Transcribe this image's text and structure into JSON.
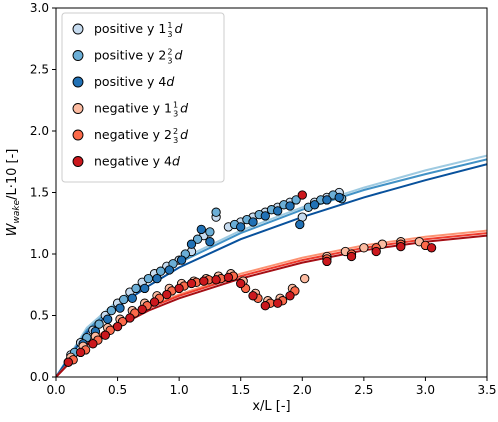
{
  "chart_data": {
    "type": "scatter",
    "title": "",
    "xlabel": "x/L [-]",
    "ylabel": "W_wake/L·10 [-]",
    "xlim": [
      0.0,
      3.5
    ],
    "ylim": [
      0.0,
      3.0
    ],
    "xticks": [
      "0.0",
      "0.5",
      "1.0",
      "1.5",
      "2.0",
      "2.5",
      "3.0",
      "3.5"
    ],
    "yticks": [
      "0.0",
      "0.5",
      "1.0",
      "1.5",
      "2.0",
      "2.5",
      "3.0"
    ],
    "xtick_values": [
      0.0,
      0.5,
      1.0,
      1.5,
      2.0,
      2.5,
      3.0,
      3.5
    ],
    "ytick_values": [
      0.0,
      0.5,
      1.0,
      1.5,
      2.0,
      2.5,
      3.0
    ],
    "grid": false,
    "legend_position": "top-left",
    "series": [
      {
        "name": "positive y 1⅓d",
        "label_parts": [
          "positive y 1",
          "1",
          "3",
          "d"
        ],
        "color": "#c6dbef",
        "fit_color": "#9ecae1",
        "points": [
          [
            0.12,
            0.18
          ],
          [
            0.2,
            0.28
          ],
          [
            0.3,
            0.38
          ],
          [
            0.4,
            0.5
          ],
          [
            0.5,
            0.6
          ],
          [
            0.6,
            0.69
          ],
          [
            0.7,
            0.77
          ],
          [
            0.8,
            0.84
          ],
          [
            0.9,
            0.9
          ],
          [
            1.0,
            0.95
          ],
          [
            1.1,
            1.02
          ],
          [
            1.2,
            1.15
          ],
          [
            1.3,
            1.3
          ],
          [
            1.4,
            1.22
          ],
          [
            1.5,
            1.26
          ],
          [
            1.6,
            1.3
          ],
          [
            1.7,
            1.34
          ],
          [
            1.8,
            1.38
          ],
          [
            1.9,
            1.42
          ],
          [
            2.0,
            1.3
          ],
          [
            2.1,
            1.42
          ],
          [
            2.2,
            1.46
          ],
          [
            2.3,
            1.5
          ]
        ],
        "fit": [
          [
            0.0,
            0.0
          ],
          [
            0.25,
            0.4
          ],
          [
            0.5,
            0.62
          ],
          [
            0.75,
            0.8
          ],
          [
            1.0,
            0.95
          ],
          [
            1.5,
            1.19
          ],
          [
            2.0,
            1.38
          ],
          [
            2.5,
            1.54
          ],
          [
            3.0,
            1.68
          ],
          [
            3.5,
            1.8
          ]
        ]
      },
      {
        "name": "positive y 2⅔d",
        "label_parts": [
          "positive y 2",
          "2",
          "3",
          "d"
        ],
        "color": "#6baed6",
        "fit_color": "#4292c6",
        "points": [
          [
            0.15,
            0.2
          ],
          [
            0.25,
            0.32
          ],
          [
            0.35,
            0.43
          ],
          [
            0.45,
            0.54
          ],
          [
            0.55,
            0.63
          ],
          [
            0.65,
            0.72
          ],
          [
            0.75,
            0.8
          ],
          [
            0.85,
            0.86
          ],
          [
            0.95,
            0.92
          ],
          [
            1.05,
            1.0
          ],
          [
            1.15,
            1.12
          ],
          [
            1.25,
            1.18
          ],
          [
            1.3,
            1.34
          ],
          [
            1.45,
            1.24
          ],
          [
            1.55,
            1.28
          ],
          [
            1.65,
            1.32
          ],
          [
            1.75,
            1.36
          ],
          [
            1.85,
            1.4
          ],
          [
            1.95,
            1.44
          ],
          [
            2.05,
            1.38
          ],
          [
            2.15,
            1.44
          ],
          [
            2.25,
            1.48
          ],
          [
            2.32,
            1.45
          ]
        ],
        "fit": [
          [
            0.0,
            0.0
          ],
          [
            0.25,
            0.38
          ],
          [
            0.5,
            0.6
          ],
          [
            0.75,
            0.78
          ],
          [
            1.0,
            0.93
          ],
          [
            1.5,
            1.17
          ],
          [
            2.0,
            1.36
          ],
          [
            2.5,
            1.52
          ],
          [
            3.0,
            1.65
          ],
          [
            3.5,
            1.77
          ]
        ]
      },
      {
        "name": "positive y 4d",
        "label_parts": [
          "positive y 4",
          "",
          "",
          "d"
        ],
        "color": "#2171b5",
        "fit_color": "#08519c",
        "points": [
          [
            0.1,
            0.12
          ],
          [
            0.22,
            0.27
          ],
          [
            0.32,
            0.37
          ],
          [
            0.42,
            0.47
          ],
          [
            0.52,
            0.56
          ],
          [
            0.62,
            0.64
          ],
          [
            0.72,
            0.72
          ],
          [
            0.82,
            0.8
          ],
          [
            0.92,
            0.87
          ],
          [
            1.02,
            0.95
          ],
          [
            1.1,
            1.08
          ],
          [
            1.18,
            1.2
          ],
          [
            1.25,
            1.1
          ],
          [
            1.5,
            1.22
          ],
          [
            1.6,
            1.26
          ],
          [
            1.7,
            1.31
          ],
          [
            1.8,
            1.35
          ],
          [
            1.9,
            1.39
          ],
          [
            1.98,
            1.24
          ],
          [
            2.1,
            1.4
          ],
          [
            2.2,
            1.44
          ],
          [
            2.3,
            1.46
          ]
        ],
        "fit": [
          [
            0.0,
            0.0
          ],
          [
            0.25,
            0.36
          ],
          [
            0.5,
            0.57
          ],
          [
            0.75,
            0.74
          ],
          [
            1.0,
            0.89
          ],
          [
            1.5,
            1.12
          ],
          [
            2.0,
            1.3
          ],
          [
            2.5,
            1.46
          ],
          [
            3.0,
            1.6
          ],
          [
            3.5,
            1.73
          ]
        ]
      },
      {
        "name": "negative y 1⅓d",
        "label_parts": [
          "negative y 1",
          "1",
          "3",
          "d"
        ],
        "color": "#fcbba1",
        "fit_color": "#fc9272",
        "points": [
          [
            0.12,
            0.16
          ],
          [
            0.22,
            0.25
          ],
          [
            0.32,
            0.33
          ],
          [
            0.42,
            0.4
          ],
          [
            0.52,
            0.47
          ],
          [
            0.62,
            0.54
          ],
          [
            0.72,
            0.6
          ],
          [
            0.82,
            0.66
          ],
          [
            0.92,
            0.72
          ],
          [
            1.02,
            0.76
          ],
          [
            1.12,
            0.78
          ],
          [
            1.22,
            0.8
          ],
          [
            1.32,
            0.82
          ],
          [
            1.42,
            0.84
          ],
          [
            1.52,
            0.78
          ],
          [
            1.62,
            0.68
          ],
          [
            1.72,
            0.62
          ],
          [
            1.82,
            0.64
          ],
          [
            1.92,
            0.72
          ],
          [
            2.02,
            0.8
          ],
          [
            2.2,
            0.98
          ],
          [
            2.35,
            1.02
          ],
          [
            2.5,
            1.05
          ],
          [
            2.65,
            1.08
          ],
          [
            2.8,
            1.1
          ],
          [
            2.95,
            1.1
          ]
        ],
        "fit": [
          [
            0.0,
            0.0
          ],
          [
            0.25,
            0.28
          ],
          [
            0.5,
            0.44
          ],
          [
            0.75,
            0.57
          ],
          [
            1.0,
            0.67
          ],
          [
            1.5,
            0.84
          ],
          [
            2.0,
            0.97
          ],
          [
            2.5,
            1.07
          ],
          [
            3.0,
            1.14
          ],
          [
            3.5,
            1.19
          ]
        ]
      },
      {
        "name": "negative y 2⅔d",
        "label_parts": [
          "negative y 2",
          "2",
          "3",
          "d"
        ],
        "color": "#fb6a4a",
        "fit_color": "#ef3b2c",
        "points": [
          [
            0.14,
            0.14
          ],
          [
            0.24,
            0.22
          ],
          [
            0.34,
            0.3
          ],
          [
            0.44,
            0.38
          ],
          [
            0.54,
            0.45
          ],
          [
            0.64,
            0.52
          ],
          [
            0.74,
            0.58
          ],
          [
            0.84,
            0.64
          ],
          [
            0.94,
            0.7
          ],
          [
            1.04,
            0.74
          ],
          [
            1.14,
            0.77
          ],
          [
            1.24,
            0.79
          ],
          [
            1.34,
            0.8
          ],
          [
            1.44,
            0.82
          ],
          [
            1.54,
            0.72
          ],
          [
            1.64,
            0.64
          ],
          [
            1.74,
            0.6
          ],
          [
            1.84,
            0.62
          ],
          [
            1.94,
            0.7
          ],
          [
            2.2,
            0.96
          ],
          [
            2.4,
            1.0
          ],
          [
            2.6,
            1.05
          ],
          [
            2.8,
            1.08
          ],
          [
            3.0,
            1.07
          ]
        ],
        "fit": [
          [
            0.0,
            0.0
          ],
          [
            0.25,
            0.27
          ],
          [
            0.5,
            0.43
          ],
          [
            0.75,
            0.56
          ],
          [
            1.0,
            0.66
          ],
          [
            1.5,
            0.82
          ],
          [
            2.0,
            0.95
          ],
          [
            2.5,
            1.05
          ],
          [
            3.0,
            1.12
          ],
          [
            3.5,
            1.17
          ]
        ]
      },
      {
        "name": "negative y 4d",
        "label_parts": [
          "negative y 4",
          "",
          "",
          "d"
        ],
        "color": "#cb181d",
        "fit_color": "#a50f15",
        "points": [
          [
            0.1,
            0.12
          ],
          [
            0.2,
            0.2
          ],
          [
            0.3,
            0.27
          ],
          [
            0.4,
            0.34
          ],
          [
            0.5,
            0.41
          ],
          [
            0.6,
            0.48
          ],
          [
            0.7,
            0.55
          ],
          [
            0.8,
            0.61
          ],
          [
            0.9,
            0.67
          ],
          [
            1.0,
            0.72
          ],
          [
            1.1,
            0.76
          ],
          [
            1.2,
            0.78
          ],
          [
            1.3,
            0.79
          ],
          [
            1.4,
            0.81
          ],
          [
            1.5,
            0.76
          ],
          [
            1.6,
            0.66
          ],
          [
            1.7,
            0.58
          ],
          [
            1.8,
            0.6
          ],
          [
            1.9,
            0.66
          ],
          [
            2.0,
            1.48
          ],
          [
            2.2,
            0.94
          ],
          [
            2.4,
            0.98
          ],
          [
            2.6,
            1.02
          ],
          [
            2.8,
            1.06
          ],
          [
            3.05,
            1.05
          ]
        ],
        "fit": [
          [
            0.0,
            0.0
          ],
          [
            0.25,
            0.26
          ],
          [
            0.5,
            0.41
          ],
          [
            0.75,
            0.54
          ],
          [
            1.0,
            0.64
          ],
          [
            1.5,
            0.8
          ],
          [
            2.0,
            0.93
          ],
          [
            2.5,
            1.03
          ],
          [
            3.0,
            1.1
          ],
          [
            3.5,
            1.15
          ]
        ]
      }
    ]
  }
}
